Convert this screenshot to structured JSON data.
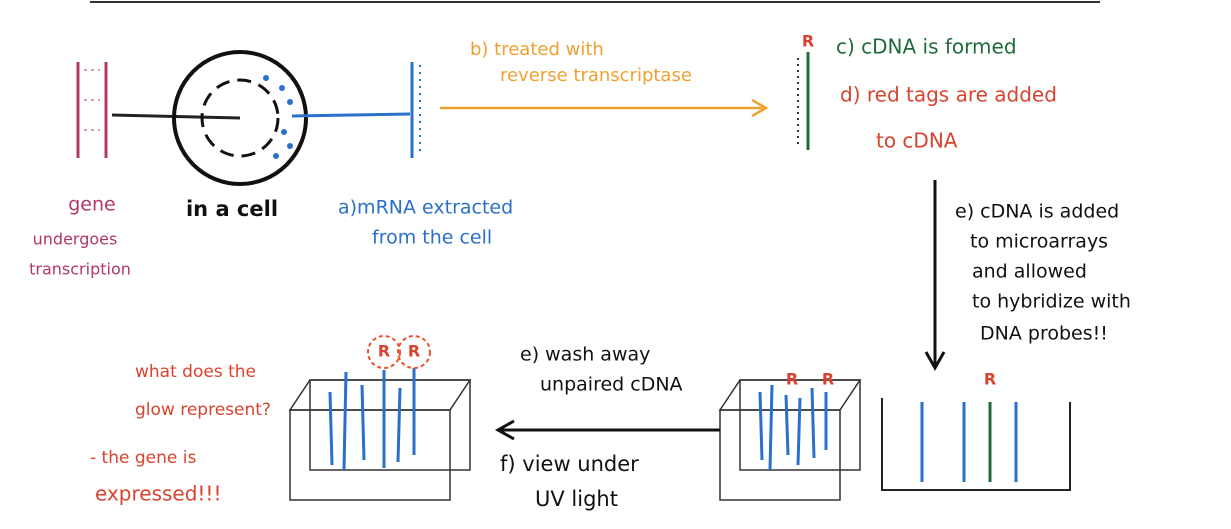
{
  "labels": {
    "gene": [
      "gene",
      "undergoes",
      "transcription"
    ],
    "cell": "in a cell",
    "mrna": [
      "a)mRNA extracted",
      "from the cell"
    ],
    "reverse": [
      "b) treated with",
      "reverse transcriptase"
    ],
    "cdna_formed": "c) cDNA is formed",
    "red_tags": [
      "d) red tags are added",
      "to cDNA"
    ],
    "hybridize": [
      "e) cDNA is added",
      "to microarrays",
      "and allowed",
      "to hybridize with",
      "DNA probes!!"
    ],
    "wash": [
      "e) wash away",
      "unpaired cDNA"
    ],
    "view": [
      "f) view under",
      "UV light"
    ],
    "question": [
      "what does the",
      "glow represent?"
    ],
    "answer": [
      "- the gene is",
      "expressed!!!"
    ],
    "tag": "R"
  }
}
